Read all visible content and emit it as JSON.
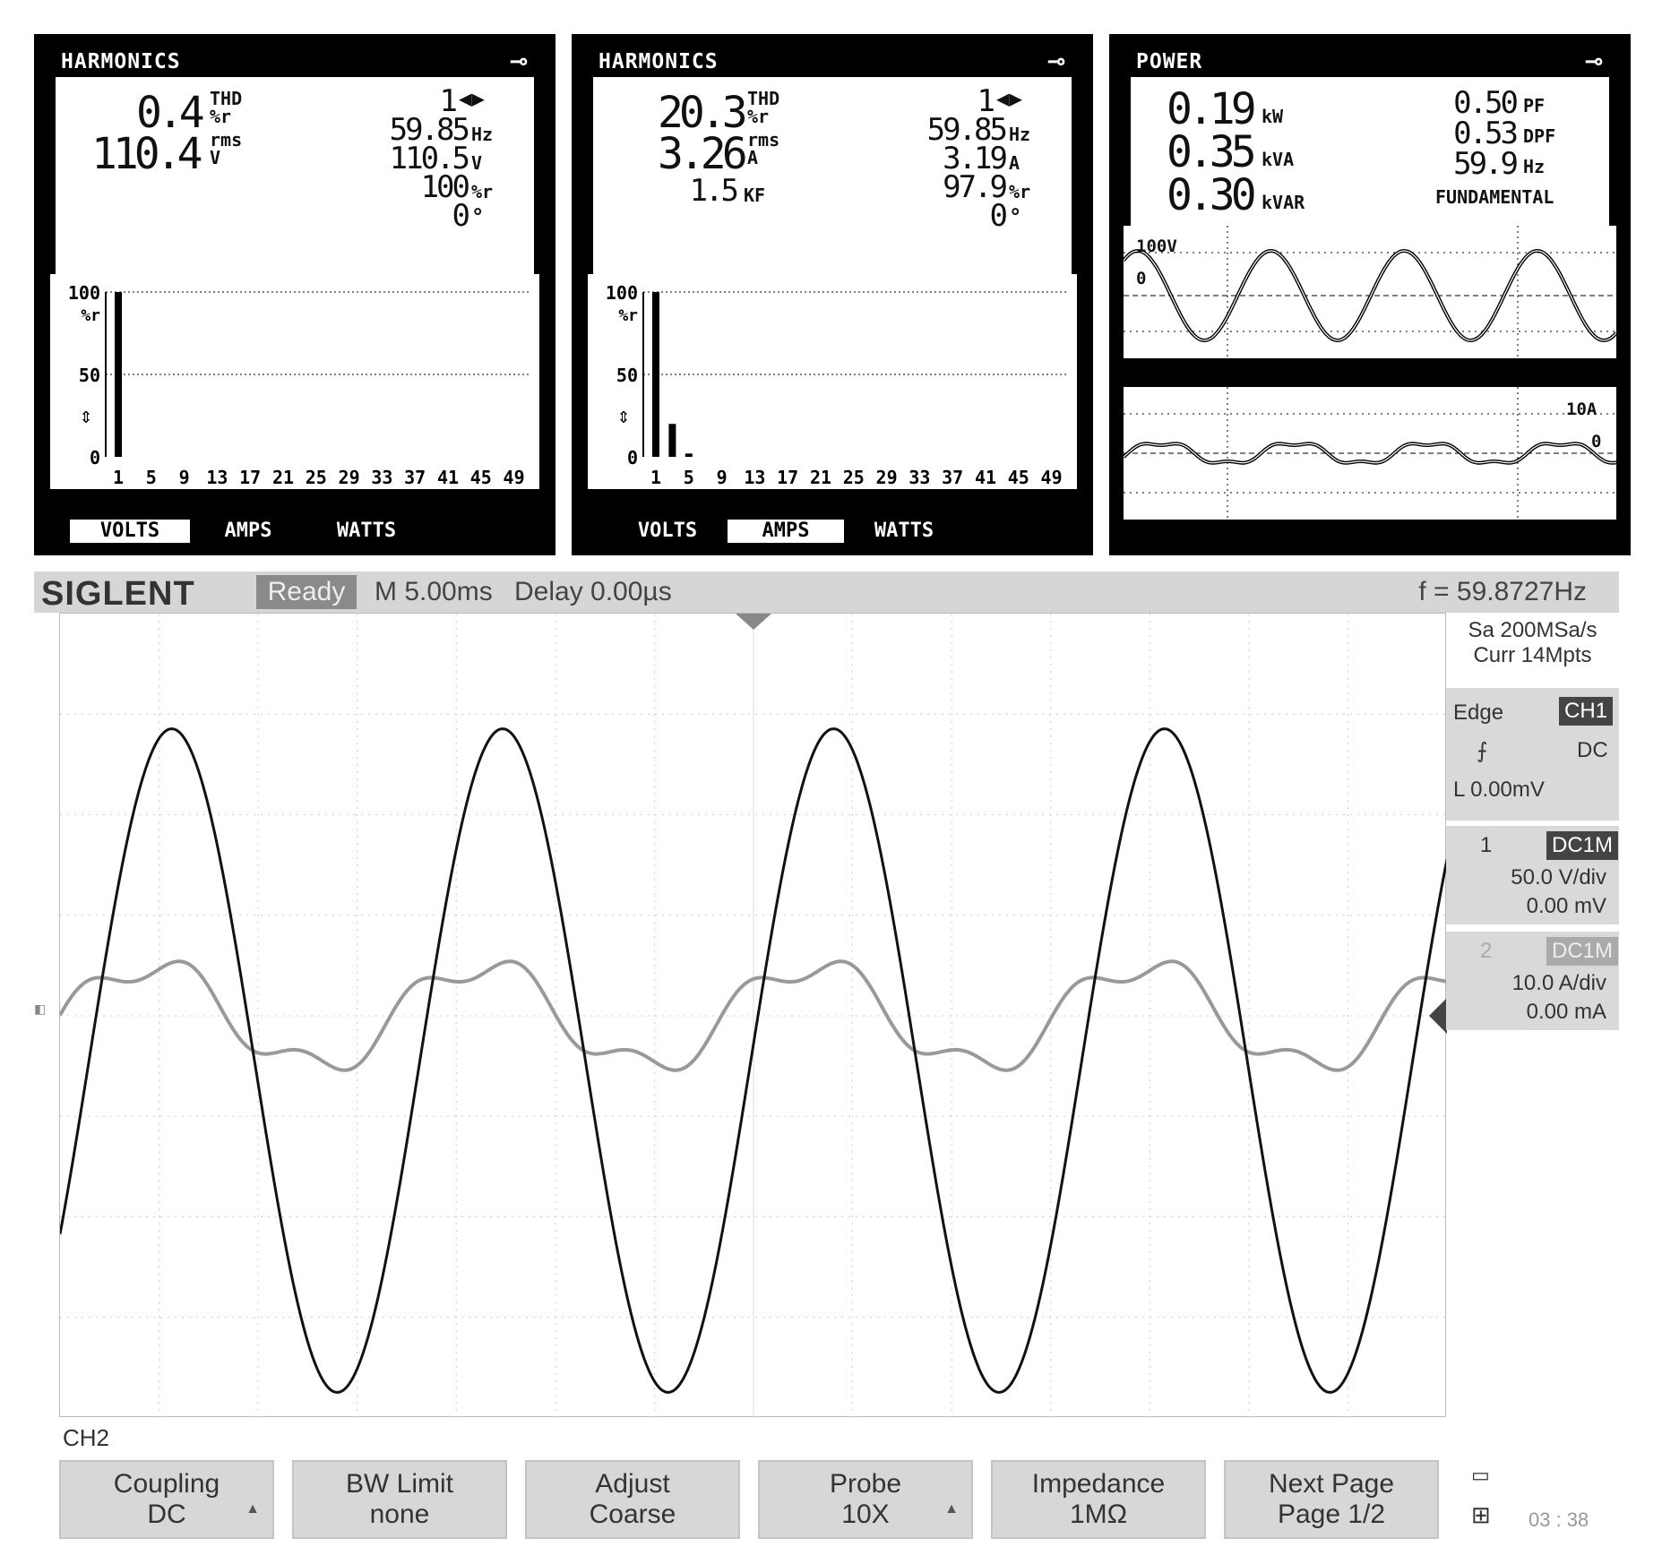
{
  "panels": [
    {
      "title": "HARMONICS",
      "thd_value": "0.4",
      "thd_label": "THD",
      "thd_unit": "%r",
      "rms_value": "110.4",
      "rms_label": "rms",
      "rms_unit": "V",
      "harmonic_index": "1",
      "freq": "59.85",
      "freq_unit": "Hz",
      "value2": "110.5",
      "value2_unit": "V",
      "value3": "100",
      "value3_unit": "%r",
      "angle": "0",
      "angle_unit": "°",
      "y_ticks": [
        "100",
        "50",
        "0"
      ],
      "y_unit": "%r",
      "x_ticks": [
        "1",
        "5",
        "9",
        "13",
        "17",
        "21",
        "25",
        "29",
        "33",
        "37",
        "41",
        "45",
        "49"
      ],
      "tabs": [
        "VOLTS",
        "AMPS",
        "WATTS"
      ],
      "active_tab": 0,
      "bars": [
        {
          "harmonic": 1,
          "percent": 100
        }
      ]
    },
    {
      "title": "HARMONICS",
      "thd_value": "20.3",
      "thd_label": "THD",
      "thd_unit": "%r",
      "rms_value": "3.26",
      "rms_label": "rms",
      "rms_unit": "A",
      "kf_value": "1.5",
      "kf_unit": "KF",
      "harmonic_index": "1",
      "freq": "59.85",
      "freq_unit": "Hz",
      "value2": "3.19",
      "value2_unit": "A",
      "value3": "97.9",
      "value3_unit": "%r",
      "angle": "0",
      "angle_unit": "°",
      "y_ticks": [
        "100",
        "50",
        "0"
      ],
      "y_unit": "%r",
      "x_ticks": [
        "1",
        "5",
        "9",
        "13",
        "17",
        "21",
        "25",
        "29",
        "33",
        "37",
        "41",
        "45",
        "49"
      ],
      "tabs": [
        "VOLTS",
        "AMPS",
        "WATTS"
      ],
      "active_tab": 1,
      "bars": [
        {
          "harmonic": 1,
          "percent": 100
        },
        {
          "harmonic": 3,
          "percent": 20
        },
        {
          "harmonic": 5,
          "percent": 2
        }
      ]
    },
    {
      "title": "POWER",
      "kw": "0.19",
      "kw_unit": "kW",
      "kva": "0.35",
      "kva_unit": "kVA",
      "kvar": "0.30",
      "kvar_unit": "kVAR",
      "pf": "0.50",
      "pf_unit": "PF",
      "dpf": "0.53",
      "dpf_unit": "DPF",
      "hz": "59.9",
      "hz_unit": "Hz",
      "mode": "FUNDAMENTAL",
      "volt_scale": "100V",
      "volt_zero": "0",
      "amp_scale": "10A",
      "amp_zero": "0"
    }
  ],
  "scope": {
    "brand": "SIGLENT",
    "status": "Ready",
    "timebase": "M 5.00ms",
    "delay": "Delay 0.00µs",
    "frequency": "f = 59.8727Hz",
    "sample_rate": "Sa 200MSa/s",
    "curr_pts": "Curr 14Mpts",
    "trigger": {
      "type": "Edge",
      "source": "CH1",
      "coupling": "DC",
      "level": "L  0.00mV"
    },
    "ch1": {
      "num": "1",
      "coupling": "DC1M",
      "scale": "50.0 V/div",
      "offset": "0.00 mV"
    },
    "ch2": {
      "num": "2",
      "coupling": "DC1M",
      "scale": "10.0 A/div",
      "offset": "0.00 mA"
    },
    "menu_title": "CH2",
    "softkeys": [
      {
        "line1": "Coupling",
        "line2": "DC",
        "arrow": true
      },
      {
        "line1": "BW Limit",
        "line2": "none",
        "arrow": false
      },
      {
        "line1": "Adjust",
        "line2": "Coarse",
        "arrow": false
      },
      {
        "line1": "Probe",
        "line2": "10X",
        "arrow": true
      },
      {
        "line1": "Impedance",
        "line2": "1MΩ",
        "arrow": false
      },
      {
        "line1": "Next Page",
        "line2": "Page 1/2",
        "arrow": false
      }
    ],
    "clock": "03 : 38",
    "waveform": {
      "frequency_hz": 59.8727,
      "timebase_ms_per_div": 5.0,
      "ch1_peak_div": 3.3,
      "ch2_peak_div": 0.6
    }
  }
}
